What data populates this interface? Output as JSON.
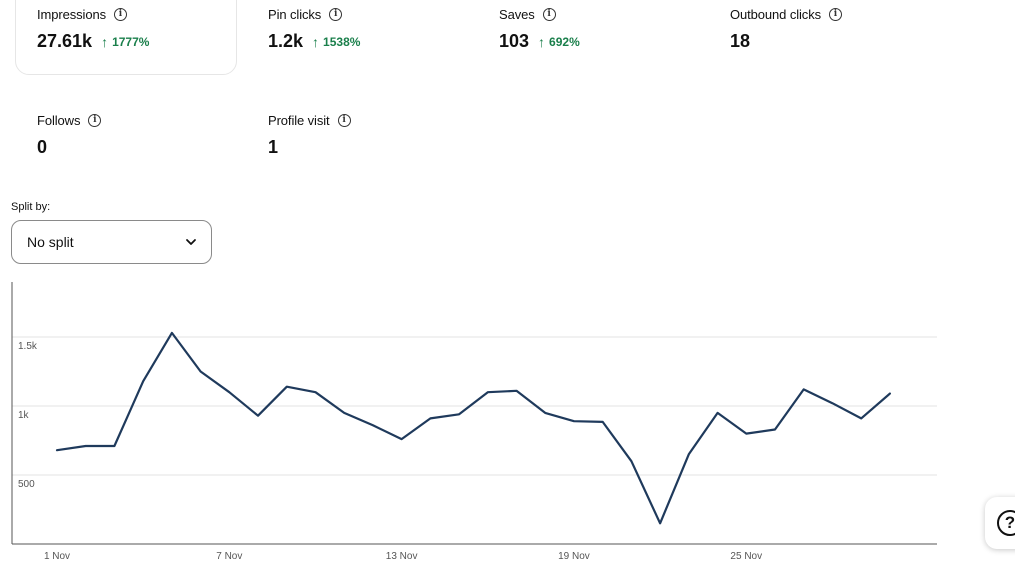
{
  "metrics": [
    {
      "label": "Impressions",
      "value": "27.61k",
      "delta": "1777%"
    },
    {
      "label": "Pin clicks",
      "value": "1.2k",
      "delta": "1538%"
    },
    {
      "label": "Saves",
      "value": "103",
      "delta": "692%"
    },
    {
      "label": "Outbound clicks",
      "value": "18",
      "delta": ""
    },
    {
      "label": "Follows",
      "value": "0",
      "delta": ""
    },
    {
      "label": "Profile visit",
      "value": "1",
      "delta": ""
    }
  ],
  "icons": {
    "info": "i",
    "delta_arrow": "↑",
    "help": "?"
  },
  "split": {
    "label": "Split by:",
    "value": "No split"
  },
  "colors": {
    "line": "#1f3a5c",
    "positive_delta": "#1a7f4b"
  },
  "chart_data": {
    "type": "line",
    "title": "",
    "xlabel": "",
    "ylabel": "",
    "grid": true,
    "x_ticks": [
      "1 Nov",
      "7 Nov",
      "13 Nov",
      "19 Nov",
      "25 Nov"
    ],
    "y_ticks": [
      {
        "value": 500,
        "label": "500"
      },
      {
        "value": 1000,
        "label": "1k"
      },
      {
        "value": 1500,
        "label": "1.5k"
      }
    ],
    "ylim": [
      0,
      1700
    ],
    "x": [
      "1 Nov",
      "2 Nov",
      "3 Nov",
      "4 Nov",
      "5 Nov",
      "6 Nov",
      "7 Nov",
      "8 Nov",
      "9 Nov",
      "10 Nov",
      "11 Nov",
      "12 Nov",
      "13 Nov",
      "14 Nov",
      "15 Nov",
      "16 Nov",
      "17 Nov",
      "18 Nov",
      "19 Nov",
      "20 Nov",
      "21 Nov",
      "22 Nov",
      "23 Nov",
      "24 Nov",
      "25 Nov",
      "26 Nov",
      "27 Nov",
      "28 Nov",
      "29 Nov",
      "30 Nov"
    ],
    "series": [
      {
        "values": [
          680,
          710,
          710,
          1180,
          1530,
          1250,
          1100,
          930,
          1140,
          1100,
          950,
          860,
          760,
          910,
          940,
          1100,
          1110,
          950,
          890,
          885,
          600,
          150,
          650,
          950,
          800,
          830,
          1120,
          1020,
          910,
          1090
        ]
      }
    ]
  }
}
